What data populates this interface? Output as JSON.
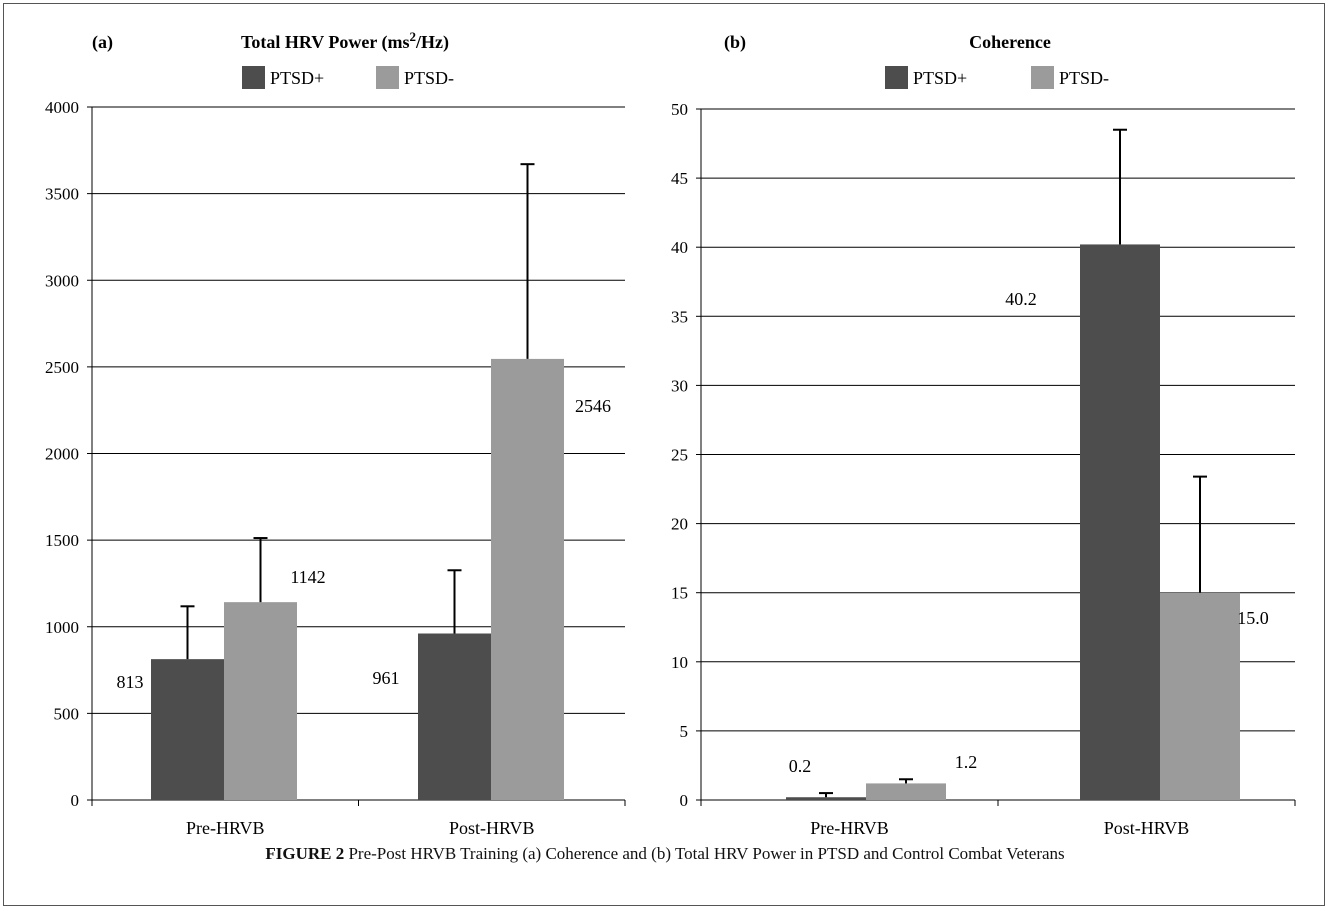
{
  "figure": {
    "caption_label": "FIGURE 2",
    "caption_text": "Pre-Post HRVB Training (a) Coherence and (b) Total HRV Power in PTSD and Control Combat Veterans"
  },
  "colors": {
    "ptsd_plus": "#4d4d4d",
    "ptsd_minus": "#9b9b9b",
    "gridline": "#000000"
  },
  "chart_data": [
    {
      "type": "bar",
      "panel_label": "(a)",
      "title": "Total HRV Power (ms²/Hz)",
      "categories": [
        "Pre-HRVB",
        "Post-HRVB"
      ],
      "series": [
        {
          "name": "PTSD+",
          "values": [
            813,
            961
          ],
          "error": [
            305,
            365
          ],
          "value_labels": [
            "813",
            "961"
          ]
        },
        {
          "name": "PTSD-",
          "values": [
            1142,
            2546
          ],
          "error": [
            370,
            1124
          ],
          "value_labels": [
            "1142",
            "2546"
          ]
        }
      ],
      "ylim": [
        0,
        4000
      ],
      "yticks": [
        "0",
        "500",
        "1000",
        "1500",
        "2000",
        "2500",
        "3000",
        "3500",
        "4000"
      ],
      "ytick_values": [
        0,
        500,
        1000,
        1500,
        2000,
        2500,
        3000,
        3500,
        4000
      ],
      "grid": true,
      "legend": "top-center"
    },
    {
      "type": "bar",
      "panel_label": "(b)",
      "title": "Coherence",
      "categories": [
        "Pre-HRVB",
        "Post-HRVB"
      ],
      "series": [
        {
          "name": "PTSD+",
          "values": [
            0.2,
            40.2
          ],
          "error": [
            0.3,
            8.3
          ],
          "value_labels": [
            "0.2",
            "40.2"
          ]
        },
        {
          "name": "PTSD-",
          "values": [
            1.2,
            15.0
          ],
          "error": [
            0.3,
            8.4
          ],
          "value_labels": [
            "1.2",
            "15.0"
          ]
        }
      ],
      "ylim": [
        0,
        50
      ],
      "yticks": [
        "0",
        "5",
        "10",
        "15",
        "20",
        "25",
        "30",
        "35",
        "40",
        "45",
        "50"
      ],
      "ytick_values": [
        0,
        5,
        10,
        15,
        20,
        25,
        30,
        35,
        40,
        45,
        50
      ],
      "grid": true,
      "legend": "top-center"
    }
  ]
}
